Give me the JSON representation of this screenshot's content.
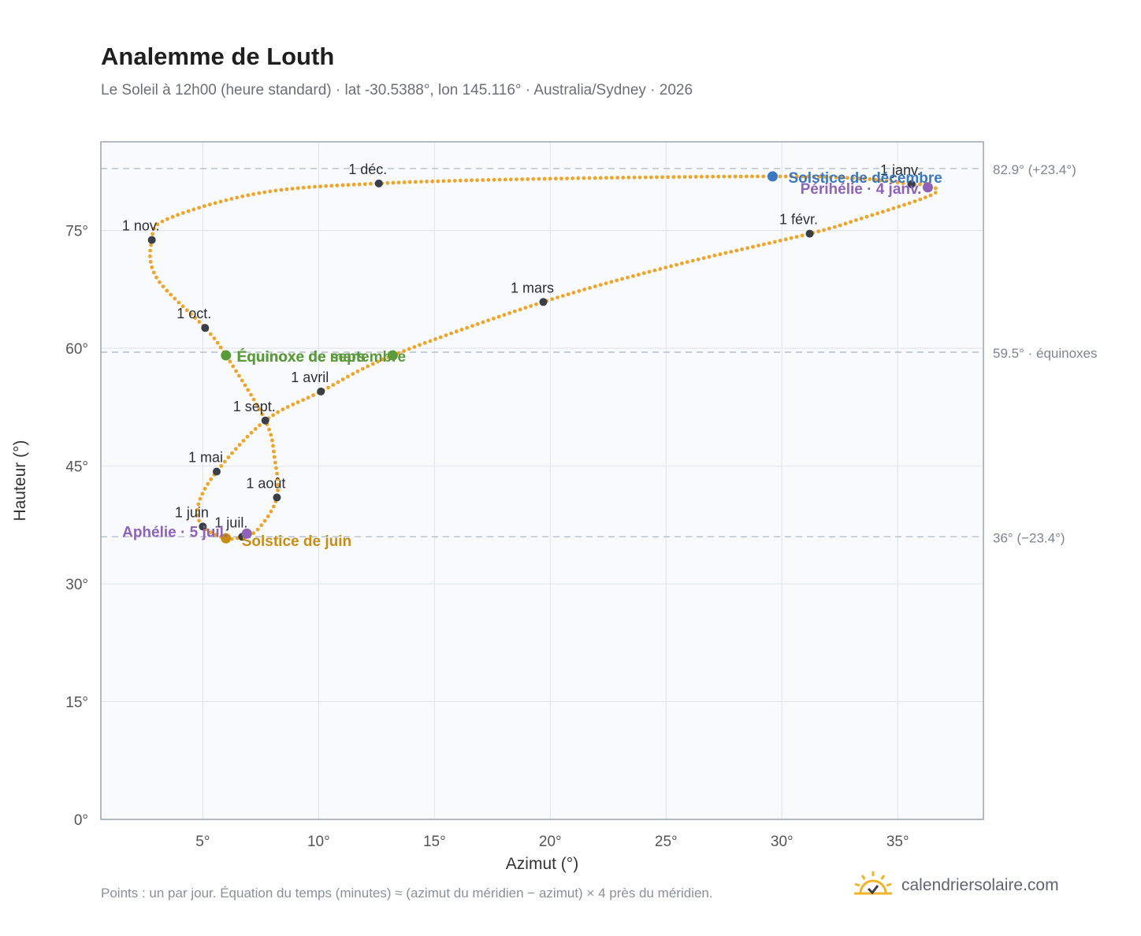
{
  "page": {
    "title": "Analemme de Louth",
    "subtitle": "Le Soleil à 12h00 (heure standard) · lat -30.5388°, lon 145.116° · Australia/Sydney · 2026",
    "footnote": "Points : un par jour. Équation du temps (minutes) ≈ (azimut du méridien − azimut) × 4 près du méridien.",
    "brand": "calendriersolaire.com",
    "brand_icon": "sun-check-icon"
  },
  "colors": {
    "analemma": "#f0a42a",
    "month_marker": "#3a3f47",
    "solstice_december": "#3b78c0",
    "solstice_june": "#c98d17",
    "equinox": "#5a9a3a",
    "perihelion_aphelion": "#8e63b8",
    "reference_line": "#b9c3cf",
    "plot_background": "#f8fafc",
    "grid": "#e2e7ee"
  },
  "chart_data": {
    "type": "scatter",
    "xlabel": "Azimut (°)",
    "ylabel": "Hauteur (°)",
    "xlim": [
      0.6,
      38.7
    ],
    "ylim": [
      0,
      86.3
    ],
    "xticks": [
      5,
      10,
      15,
      20,
      25,
      30,
      35
    ],
    "yticks": [
      0,
      15,
      30,
      45,
      60,
      75
    ],
    "tick_suffix": "°",
    "grid": true,
    "reference_lines": [
      {
        "y": 82.9,
        "label": "82.9° (+23.4°)"
      },
      {
        "y": 59.5,
        "label": "59.5° · équinoxes"
      },
      {
        "y": 36.0,
        "label": "36° (−23.4°)"
      }
    ],
    "months": [
      {
        "label": "1 janv.",
        "x": 35.6,
        "y": 80.9
      },
      {
        "label": "1 févr.",
        "x": 31.2,
        "y": 74.6
      },
      {
        "label": "1 mars",
        "x": 19.7,
        "y": 65.9
      },
      {
        "label": "1 avril",
        "x": 10.1,
        "y": 54.5
      },
      {
        "label": "1 mai",
        "x": 5.6,
        "y": 44.3
      },
      {
        "label": "1 juin",
        "x": 5.0,
        "y": 37.3
      },
      {
        "label": "1 juil.",
        "x": 6.7,
        "y": 36.0
      },
      {
        "label": "1 août",
        "x": 8.2,
        "y": 41.0
      },
      {
        "label": "1 sept.",
        "x": 7.7,
        "y": 50.8
      },
      {
        "label": "1 oct.",
        "x": 5.1,
        "y": 62.6
      },
      {
        "label": "1 nov.",
        "x": 2.8,
        "y": 73.8
      },
      {
        "label": "1 déc.",
        "x": 12.6,
        "y": 81.0
      }
    ],
    "events": [
      {
        "label": "Solstice de décembre",
        "x": 29.6,
        "y": 81.9,
        "kind": "solstice_december"
      },
      {
        "label": "Périhélie · 4 janv.",
        "x": 36.3,
        "y": 80.5,
        "kind": "perihelion_aphelion"
      },
      {
        "label": "Équinoxe de mars",
        "x": 13.2,
        "y": 59.1,
        "kind": "equinox"
      },
      {
        "label": "Équinoxe de septembre",
        "x": 6.0,
        "y": 59.1,
        "kind": "equinox"
      },
      {
        "label": "Solstice de juin",
        "x": 6.0,
        "y": 35.8,
        "kind": "solstice_june"
      },
      {
        "label": "Aphélie · 5 juil.",
        "x": 6.9,
        "y": 36.4,
        "kind": "perihelion_aphelion"
      }
    ],
    "analemma_path": [
      [
        36.2,
        81.0
      ],
      [
        36.7,
        80.1
      ],
      [
        36.0,
        79.0
      ],
      [
        33.5,
        76.6
      ],
      [
        31.2,
        74.6
      ],
      [
        25.4,
        70.6
      ],
      [
        19.7,
        65.9
      ],
      [
        13.2,
        59.1
      ],
      [
        10.1,
        54.5
      ],
      [
        7.7,
        50.8
      ],
      [
        5.6,
        44.3
      ],
      [
        4.8,
        40.0
      ],
      [
        5.0,
        37.3
      ],
      [
        6.0,
        35.8
      ],
      [
        6.7,
        36.0
      ],
      [
        7.4,
        37.0
      ],
      [
        8.2,
        41.0
      ],
      [
        8.1,
        46.0
      ],
      [
        7.7,
        50.8
      ],
      [
        6.0,
        59.1
      ],
      [
        5.1,
        62.6
      ],
      [
        3.0,
        69.0
      ],
      [
        2.8,
        73.8
      ],
      [
        3.5,
        76.5
      ],
      [
        7.5,
        79.8
      ],
      [
        12.6,
        81.0
      ],
      [
        20.0,
        81.6
      ],
      [
        29.6,
        81.9
      ],
      [
        33.5,
        81.6
      ],
      [
        35.6,
        80.9
      ],
      [
        36.2,
        81.0
      ]
    ]
  }
}
